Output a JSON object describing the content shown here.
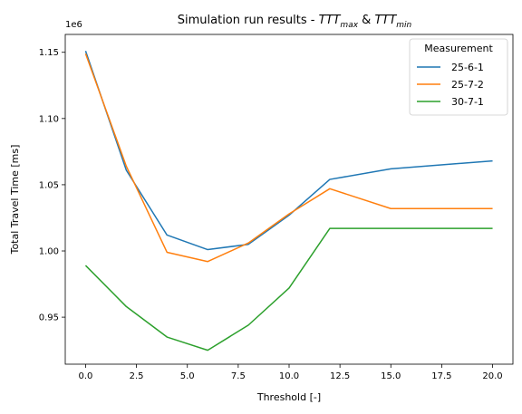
{
  "chart_data": {
    "type": "line",
    "title_prefix": "Simulation run results - ",
    "title_parts": [
      {
        "base": "TTT",
        "sub": "max"
      },
      {
        "joiner": " & "
      },
      {
        "base": "TTT",
        "sub": "min"
      }
    ],
    "xlabel": "Threshold [-]",
    "ylabel": "Total Travel Time [ms]",
    "y_offset_label": "1e6",
    "xlim": [
      -1.0,
      21.0
    ],
    "ylim": [
      0.9145,
      1.1635
    ],
    "x_ticks": [
      0.0,
      2.5,
      5.0,
      7.5,
      10.0,
      12.5,
      15.0,
      17.5,
      20.0
    ],
    "x_tick_labels": [
      "0.0",
      "2.5",
      "5.0",
      "7.5",
      "10.0",
      "12.5",
      "15.0",
      "17.5",
      "20.0"
    ],
    "y_ticks": [
      0.95,
      1.0,
      1.05,
      1.1,
      1.15
    ],
    "y_tick_labels": [
      "0.95",
      "1.00",
      "1.05",
      "1.10",
      "1.15"
    ],
    "grid": false,
    "legend": {
      "title": "Measurement",
      "placement": "top-right"
    },
    "x": [
      0,
      2,
      4,
      6,
      8,
      10,
      12,
      15,
      20
    ],
    "series": [
      {
        "name": "25-6-1",
        "color": "#1f77b4",
        "values": [
          1.151,
          1.061,
          1.012,
          1.001,
          1.005,
          1.027,
          1.054,
          1.062,
          1.068
        ]
      },
      {
        "name": "25-7-2",
        "color": "#ff7f0e",
        "values": [
          1.149,
          1.064,
          0.999,
          0.992,
          1.006,
          1.028,
          1.047,
          1.032,
          1.032
        ]
      },
      {
        "name": "30-7-1",
        "color": "#2ca02c",
        "values": [
          0.989,
          0.958,
          0.935,
          0.925,
          0.944,
          0.972,
          1.017,
          1.017,
          1.017
        ]
      }
    ]
  }
}
